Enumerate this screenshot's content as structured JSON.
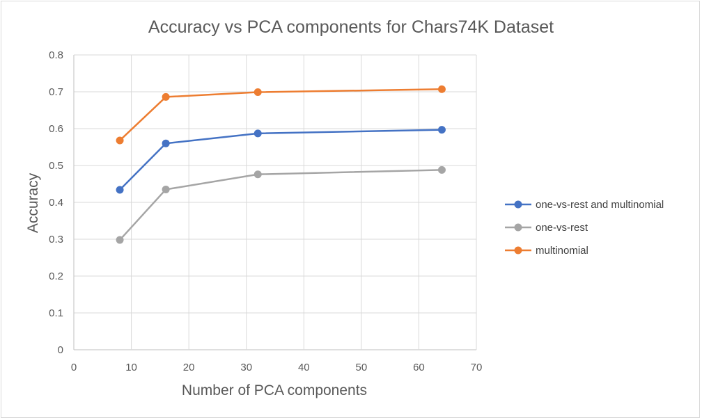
{
  "chart_data": {
    "type": "line",
    "title": "Accuracy vs PCA components for Chars74K Dataset",
    "xlabel": "Number of PCA components",
    "ylabel": "Accuracy",
    "xlim": [
      0,
      70
    ],
    "ylim": [
      0,
      0.8
    ],
    "xticks": [
      0,
      10,
      20,
      30,
      40,
      50,
      60,
      70
    ],
    "yticks": [
      0,
      0.1,
      0.2,
      0.3,
      0.4,
      0.5,
      0.6,
      0.7,
      0.8
    ],
    "grid": true,
    "legend_position": "right",
    "series": [
      {
        "name": "one-vs-rest and multinomial",
        "color": "#4472c4",
        "x": [
          8,
          16,
          32,
          64
        ],
        "y": [
          0.434,
          0.56,
          0.587,
          0.597
        ]
      },
      {
        "name": "one-vs-rest",
        "color": "#a5a5a5",
        "x": [
          8,
          16,
          32,
          64
        ],
        "y": [
          0.298,
          0.435,
          0.476,
          0.488
        ]
      },
      {
        "name": "multinomial",
        "color": "#ed7d31",
        "x": [
          8,
          16,
          32,
          64
        ],
        "y": [
          0.568,
          0.686,
          0.699,
          0.707
        ]
      }
    ]
  }
}
